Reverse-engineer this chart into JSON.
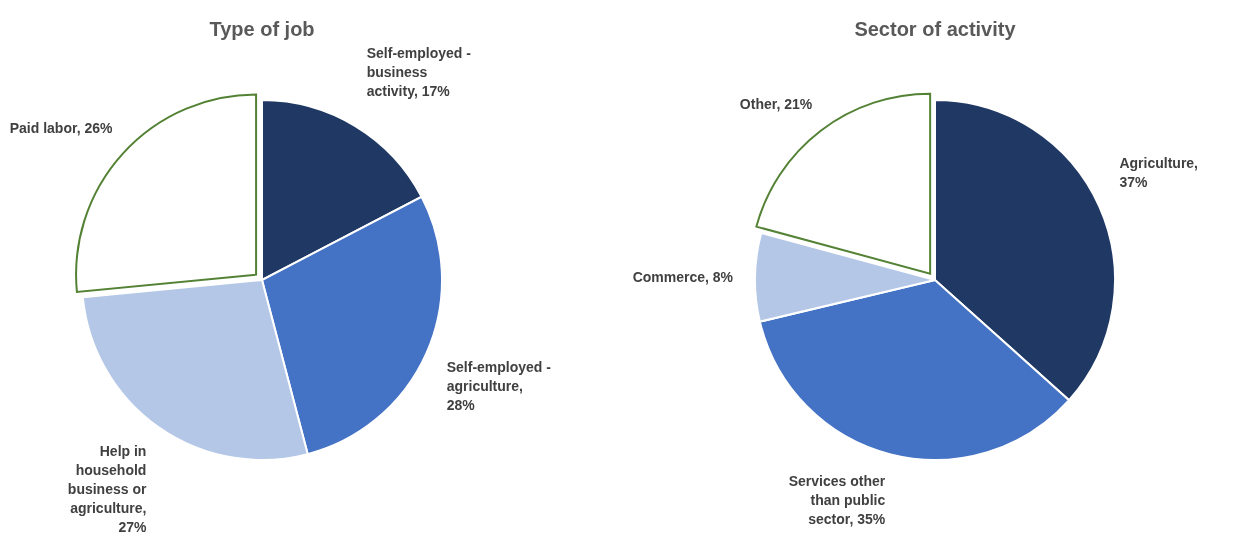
{
  "chart_data": [
    {
      "type": "pie",
      "title": "Type of job",
      "categories": [
        "Self-employed - business activity, 17%",
        "Self-employed - agriculture, 28%",
        "Help in household business or agriculture, 27%",
        "Paid labor, 26%"
      ],
      "values": [
        17,
        28,
        27,
        26
      ],
      "colors": [
        "#1f3864",
        "#4472c4",
        "#b4c7e7",
        "#ffffff"
      ]
    },
    {
      "type": "pie",
      "title": "Sector of activity",
      "categories": [
        "Agriculture, 37%",
        "Services other than public sector, 35%",
        "Commerce, 8%",
        "Other, 21%"
      ],
      "values": [
        37,
        35,
        8,
        21
      ],
      "colors": [
        "#1f3864",
        "#4472c4",
        "#b4c7e7",
        "#ffffff"
      ]
    }
  ]
}
